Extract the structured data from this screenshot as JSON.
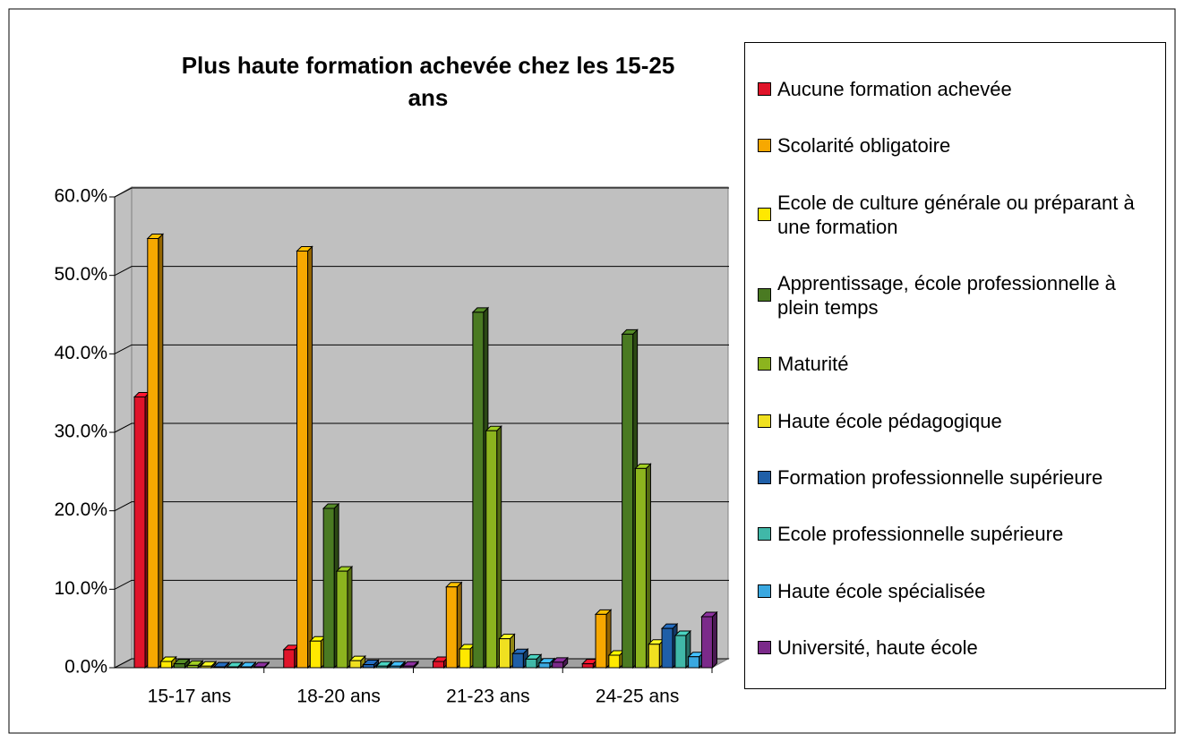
{
  "chart_data": {
    "type": "bar3d",
    "title": "Plus haute formation achevée chez les 15-25 ans",
    "categories": [
      "15-17 ans",
      "18-20 ans",
      "21-23 ans",
      "24-25 ans"
    ],
    "ylim": [
      0,
      60
    ],
    "yticks": [
      {
        "value": 0,
        "label": "0.0%"
      },
      {
        "value": 10,
        "label": "10.0%"
      },
      {
        "value": 20,
        "label": "20.0%"
      },
      {
        "value": 30,
        "label": "30.0%"
      },
      {
        "value": 40,
        "label": "40.0%"
      },
      {
        "value": 50,
        "label": "50.0%"
      },
      {
        "value": 60,
        "label": "60.0%"
      }
    ],
    "grid": true,
    "legend": "right",
    "series": [
      {
        "name": "Aucune formation achevée",
        "color": "#e0142a",
        "values": [
          34.5,
          2.3,
          0.8,
          0.5
        ]
      },
      {
        "name": "Scolarité obligatoire",
        "color": "#f7a800",
        "values": [
          54.7,
          53.1,
          10.3,
          6.8
        ]
      },
      {
        "name": "Ecole de culture générale ou préparant à une formation",
        "color": "#ffe800",
        "values": [
          0.8,
          3.4,
          2.4,
          1.6
        ]
      },
      {
        "name": "Apprentissage, école professionnelle à plein temps",
        "color": "#4a7a22",
        "values": [
          0.5,
          20.3,
          45.3,
          42.5
        ]
      },
      {
        "name": "Maturité",
        "color": "#8cb41e",
        "values": [
          0.3,
          12.3,
          30.2,
          25.4
        ]
      },
      {
        "name": "Haute école pédagogique",
        "color": "#f0e020",
        "values": [
          0.2,
          0.9,
          3.7,
          3.0
        ]
      },
      {
        "name": "Formation professionnelle supérieure",
        "color": "#1f5fa8",
        "values": [
          0.1,
          0.4,
          1.8,
          5.0
        ]
      },
      {
        "name": "Ecole professionnelle supérieure",
        "color": "#40b8a8",
        "values": [
          0.1,
          0.2,
          1.1,
          4.1
        ]
      },
      {
        "name": "Haute école spécialisée",
        "color": "#3aa8e0",
        "values": [
          0.1,
          0.2,
          0.6,
          1.4
        ]
      },
      {
        "name": "Université, haute école",
        "color": "#7b2a8a",
        "values": [
          0.1,
          0.2,
          0.7,
          6.5
        ]
      }
    ]
  }
}
